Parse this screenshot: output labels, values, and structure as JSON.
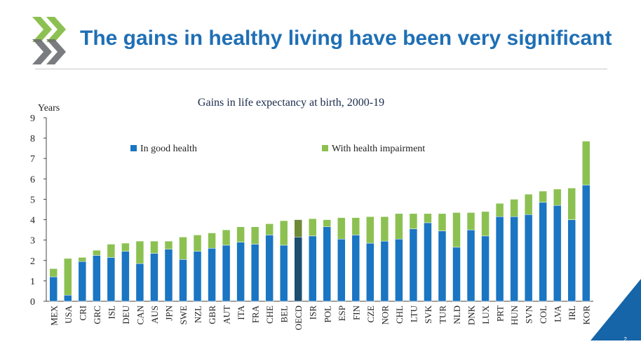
{
  "slide": {
    "title": "The gains in healthy living have been very significant",
    "page_number": "2"
  },
  "colors": {
    "title_blue": "#1f6fb5",
    "good_health": "#1a75c2",
    "impairment": "#8cc152",
    "oecd_good": "#1c4e6e",
    "oecd_impairment": "#6e8a36",
    "logo_green": "#8cc152",
    "logo_gray": "#6d6e71",
    "corner_blue": "#1565a8"
  },
  "chart_data": {
    "type": "bar",
    "stacked": true,
    "title": "Gains in life expectancy at birth, 2000-19",
    "ylabel": "Years",
    "ylim": [
      0,
      9
    ],
    "yticks": [
      0,
      1,
      2,
      3,
      4,
      5,
      6,
      7,
      8,
      9
    ],
    "legend_position": "top",
    "highlight": "OECD",
    "categories": [
      "MEX",
      "USA",
      "CRI",
      "GRC",
      "ISL",
      "DEU",
      "CAN",
      "AUS",
      "JPN",
      "SWE",
      "NZL",
      "GBR",
      "AUT",
      "ITA",
      "FRA",
      "CHE",
      "BEL",
      "OECD",
      "ISR",
      "POL",
      "ESP",
      "FIN",
      "CZE",
      "NOR",
      "CHL",
      "LTU",
      "SVK",
      "TUR",
      "NLD",
      "DNK",
      "LUX",
      "PRT",
      "HUN",
      "SVN",
      "COL",
      "LVA",
      "IRL",
      "KOR"
    ],
    "series": [
      {
        "name": "In good health",
        "values": [
          1.2,
          0.3,
          1.95,
          2.25,
          2.15,
          2.45,
          1.85,
          2.35,
          2.55,
          2.05,
          2.45,
          2.6,
          2.75,
          2.9,
          2.8,
          3.25,
          2.75,
          3.15,
          3.2,
          3.65,
          3.05,
          3.25,
          2.85,
          2.95,
          3.05,
          3.55,
          3.85,
          3.45,
          2.65,
          3.5,
          3.2,
          4.15,
          4.15,
          4.25,
          4.85,
          4.7,
          4.0,
          5.7
        ]
      },
      {
        "name": "With health impairment",
        "values": [
          0.4,
          1.8,
          0.2,
          0.25,
          0.65,
          0.4,
          1.1,
          0.6,
          0.4,
          1.1,
          0.8,
          0.75,
          0.75,
          0.75,
          0.85,
          0.55,
          1.2,
          0.85,
          0.85,
          0.35,
          1.05,
          0.85,
          1.3,
          1.2,
          1.25,
          0.75,
          0.45,
          0.85,
          1.7,
          0.85,
          1.2,
          0.65,
          0.85,
          1.0,
          0.55,
          0.8,
          1.55,
          2.15
        ]
      }
    ]
  }
}
